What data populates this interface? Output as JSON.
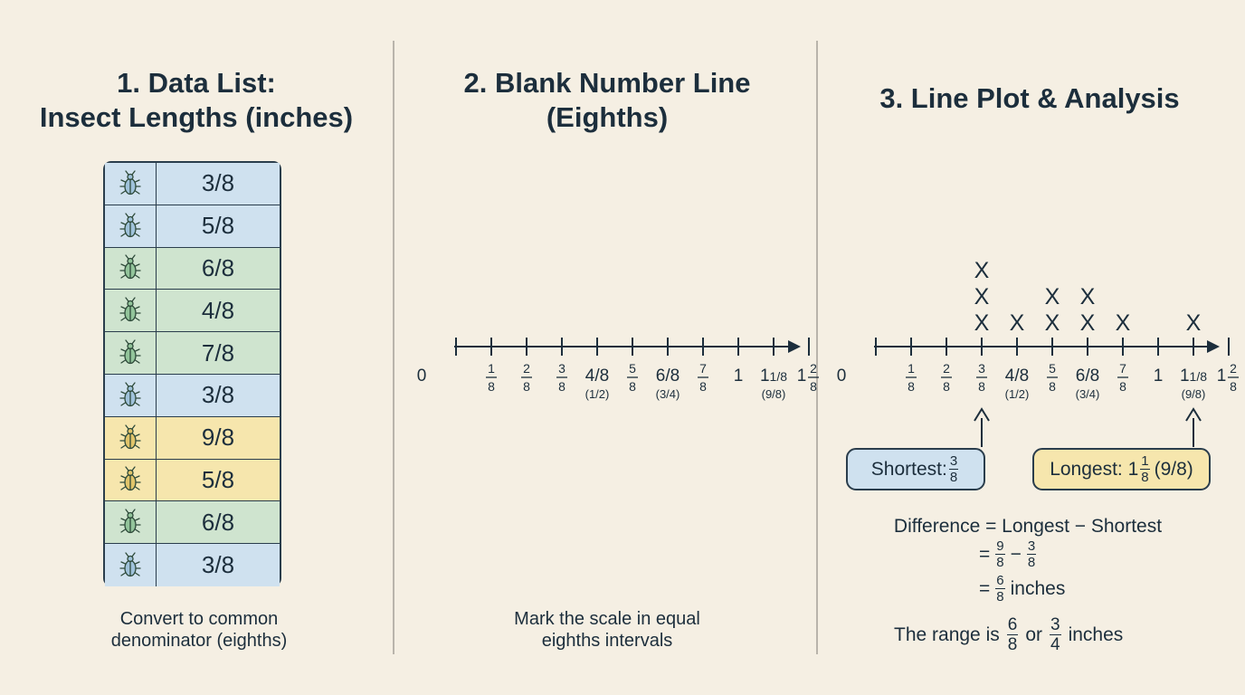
{
  "panel1": {
    "title_line1": "1. Data List:",
    "title_line2": "Insect Lengths (inches)",
    "rows": [
      {
        "value": "3/8",
        "color": "blue"
      },
      {
        "value": "5/8",
        "color": "blue"
      },
      {
        "value": "6/8",
        "color": "green"
      },
      {
        "value": "4/8",
        "color": "green"
      },
      {
        "value": "7/8",
        "color": "green"
      },
      {
        "value": "3/8",
        "color": "blue"
      },
      {
        "value": "9/8",
        "color": "yellow"
      },
      {
        "value": "5/8",
        "color": "yellow"
      },
      {
        "value": "6/8",
        "color": "green"
      },
      {
        "value": "3/8",
        "color": "blue"
      }
    ],
    "row_icon": "beetle-icon",
    "caption_line1": "Convert to common",
    "caption_line2": "denominator (eighths)"
  },
  "panel2": {
    "title_line1": "2. Blank Number Line",
    "title_line2": "(Eighths)",
    "caption_line1": "Mark the scale in equal",
    "caption_line2": "eighths intervals"
  },
  "panel3": {
    "title": "3. Line Plot & Analysis",
    "x_counts": [
      {
        "eighths": 3,
        "count": 3
      },
      {
        "eighths": 4,
        "count": 1
      },
      {
        "eighths": 5,
        "count": 2
      },
      {
        "eighths": 6,
        "count": 2
      },
      {
        "eighths": 7,
        "count": 1
      },
      {
        "eighths": 9,
        "count": 1
      }
    ],
    "mark_symbol": "X",
    "shortest_label": "Shortest:",
    "shortest_num": "3",
    "shortest_den": "8",
    "longest_label": "Longest: 1",
    "longest_num": "1",
    "longest_den": "8",
    "longest_suffix": "(9/8)",
    "difference_line": "Difference = Longest − Shortest",
    "eq1_prefix": "=",
    "eq1_a_num": "9",
    "eq1_a_den": "8",
    "eq1_op": "−",
    "eq1_b_num": "3",
    "eq1_b_den": "8",
    "eq2_prefix": "=",
    "eq2_num": "6",
    "eq2_den": "8",
    "eq2_suffix": "inches",
    "range_prefix": "The range is",
    "range_a_num": "6",
    "range_a_den": "8",
    "range_or": "or",
    "range_b_num": "3",
    "range_b_den": "4",
    "range_suffix": "inches"
  },
  "number_line": {
    "labels": [
      {
        "type": "text",
        "main": "0"
      },
      {
        "type": "frac",
        "num": "1",
        "den": "8"
      },
      {
        "type": "frac",
        "num": "2",
        "den": "8"
      },
      {
        "type": "frac",
        "num": "3",
        "den": "8"
      },
      {
        "type": "text",
        "main": "4/8",
        "sub": "(1/2)"
      },
      {
        "type": "frac",
        "num": "5",
        "den": "8"
      },
      {
        "type": "text",
        "main": "6/8",
        "sub": "(3/4)"
      },
      {
        "type": "frac",
        "num": "7",
        "den": "8"
      },
      {
        "type": "text",
        "main": "1"
      },
      {
        "type": "text",
        "main": "1",
        "small": "1/8",
        "sub": "(9/8)"
      },
      {
        "type": "mixed",
        "whole": "1",
        "num": "2",
        "den": "8"
      }
    ]
  },
  "colors": {
    "background": "#f5efe3",
    "ink": "#1c2e3c",
    "blue": "#cfe1ef",
    "green": "#cfe4cf",
    "yellow": "#f6e6ad"
  }
}
